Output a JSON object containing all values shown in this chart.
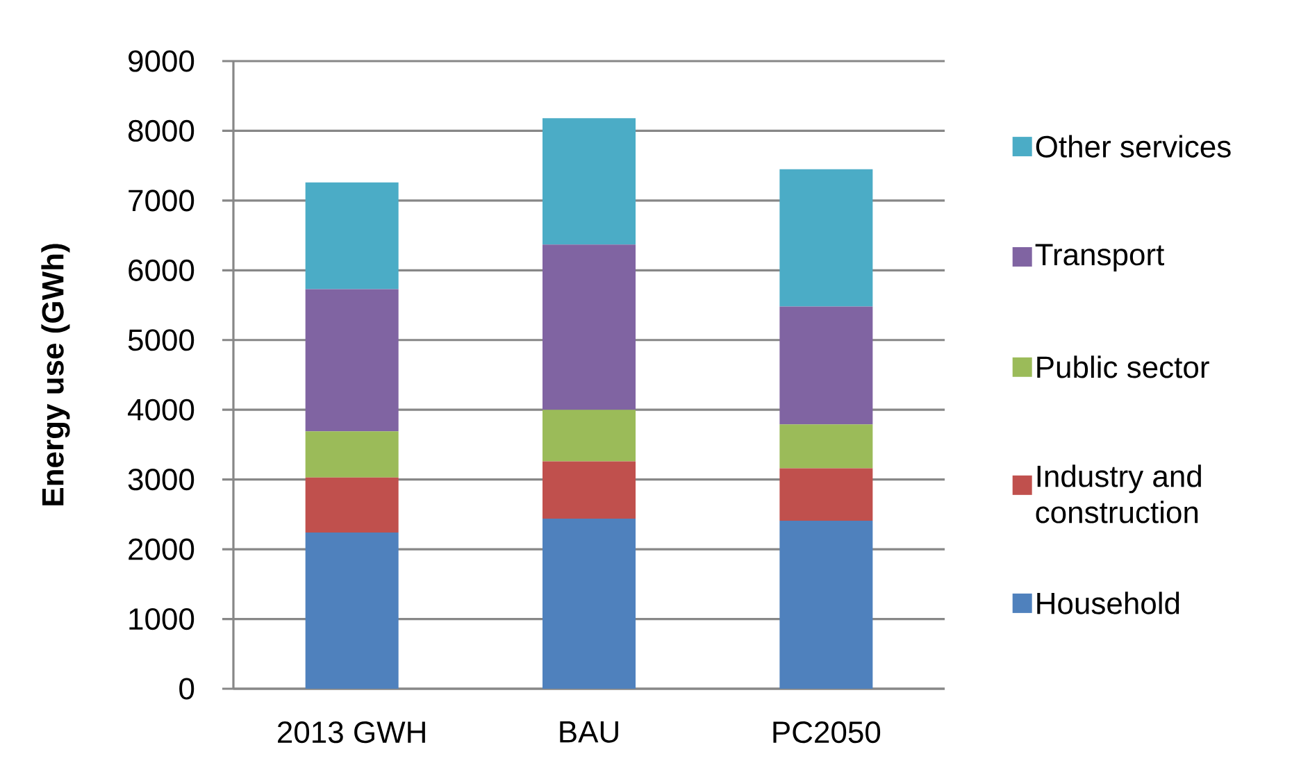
{
  "chart_data": {
    "type": "bar",
    "stacked": true,
    "ylabel": "Energy use (GWh)",
    "categories": [
      "2013 GWH",
      "BAU",
      "PC2050"
    ],
    "series": [
      {
        "name": "Household",
        "color": "#4f81bd",
        "values": [
          2240,
          2440,
          2410
        ]
      },
      {
        "name": "Industry and construction",
        "color": "#c0504d",
        "values": [
          790,
          820,
          750
        ]
      },
      {
        "name": "Public sector",
        "color": "#9bbb59",
        "values": [
          660,
          740,
          630
        ]
      },
      {
        "name": "Transport",
        "color": "#8064a2",
        "values": [
          2040,
          2370,
          1690
        ]
      },
      {
        "name": "Other services",
        "color": "#4bacc6",
        "values": [
          1530,
          1810,
          1970
        ]
      }
    ],
    "ylim": [
      0,
      9000
    ],
    "yticks": [
      0,
      1000,
      2000,
      3000,
      4000,
      5000,
      6000,
      7000,
      8000,
      9000
    ],
    "grid": "y",
    "legend": "right"
  }
}
